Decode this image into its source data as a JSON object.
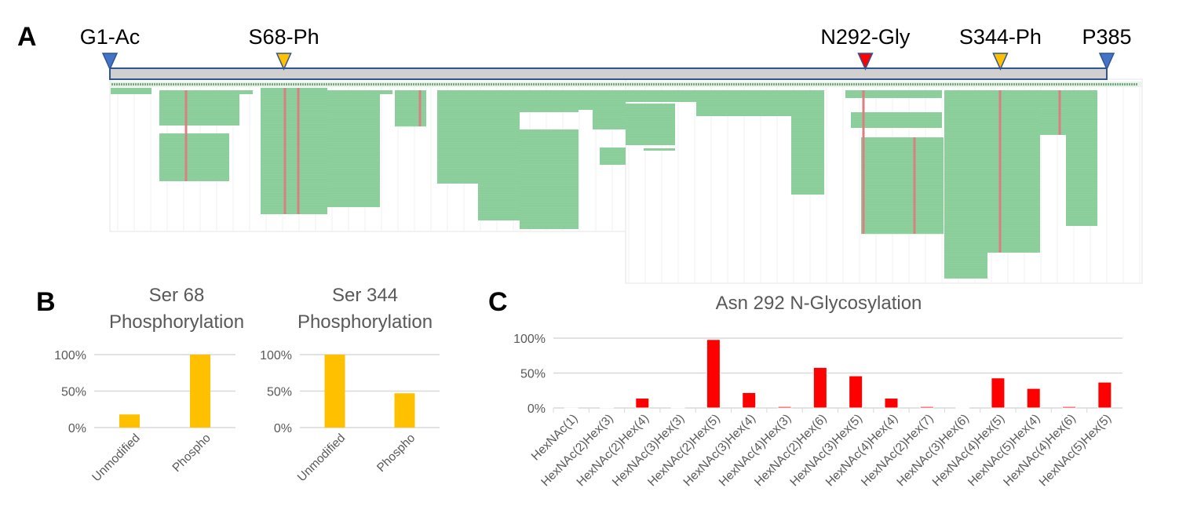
{
  "panel_letters": {
    "a": "A",
    "b": "B",
    "c": "C"
  },
  "panel_a": {
    "modifications": [
      {
        "label": "G1-Ac",
        "residue": 1,
        "color": "#4472c4"
      },
      {
        "label": "S68-Ph",
        "residue": 68,
        "color": "#ffc000"
      },
      {
        "label": "N292-Gly",
        "residue": 292,
        "color": "#ff0000"
      },
      {
        "label": "S344-Ph",
        "residue": 344,
        "color": "#ffc000"
      },
      {
        "label": "P385",
        "residue": 385,
        "color": "#4472c4"
      }
    ],
    "sequence_length": 385,
    "colors": {
      "peptide": "#8fd19e",
      "modified_site": "#d98080",
      "bar_fill": "#d0d0d0",
      "bar_border": "#2f5597"
    }
  },
  "chart_data": [
    {
      "type": "bar",
      "title_lines": [
        "Ser 68",
        "Phosphorylation"
      ],
      "categories": [
        "Unmodified",
        "Phospho"
      ],
      "values": [
        18,
        100
      ],
      "yticks": [
        "0%",
        "50%",
        "100%"
      ],
      "ylim": [
        0,
        100
      ],
      "grid": true,
      "color": "#ffc000"
    },
    {
      "type": "bar",
      "title_lines": [
        "Ser 344",
        "Phosphorylation"
      ],
      "categories": [
        "Unmodified",
        "Phospho"
      ],
      "values": [
        100,
        47
      ],
      "yticks": [
        "0%",
        "50%",
        "100%"
      ],
      "ylim": [
        0,
        100
      ],
      "grid": true,
      "color": "#ffc000"
    },
    {
      "type": "bar",
      "title_lines": [
        "Asn 292 N-Glycosylation"
      ],
      "categories": [
        "HexNAc(1)",
        "HexNAc(2)Hex(3)",
        "HexNAc(2)Hex(4)",
        "HexNAc(3)Hex(3)",
        "HexNAc(2)Hex(5)",
        "HexNAc(3)Hex(4)",
        "HexNAc(4)Hex(3)",
        "HexNAc(2)Hex(6)",
        "HexNAc(3)Hex(5)",
        "HexNAc(4)Hex(4)",
        "HexNAc(2)Hex(7)",
        "HexNAc(3)Hex(6)",
        "HexNAc(4)Hex(5)",
        "HexNAc(5)Hex(4)",
        "HexNAc(4)Hex(6)",
        "HexNAc(5)Hex(5)"
      ],
      "values": [
        0,
        1,
        14,
        1,
        98,
        22,
        2,
        58,
        46,
        14,
        2,
        0.5,
        43,
        28,
        2,
        37
      ],
      "yticks": [
        "0%",
        "50%",
        "100%"
      ],
      "ylim": [
        0,
        100
      ],
      "grid": true,
      "color": "#ff0000"
    }
  ]
}
